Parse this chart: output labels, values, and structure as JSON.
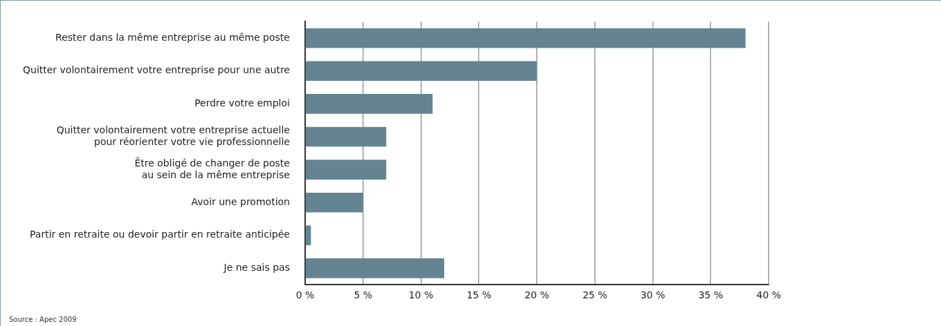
{
  "chart_data": {
    "type": "bar",
    "orientation": "horizontal",
    "categories": [
      "Rester dans la même entreprise au même poste",
      "Quitter volontairement votre entreprise pour une autre",
      "Perdre votre emploi",
      "Quitter volontairement votre entreprise actuelle\npour réorienter votre vie professionnelle",
      "Être obligé de changer de poste\nau sein de la même entreprise",
      "Avoir une promotion",
      "Partir en retraite ou devoir partir en retraite anticipée",
      "Je ne sais pas"
    ],
    "values": [
      38,
      20,
      11,
      7,
      7,
      5,
      0.5,
      12
    ],
    "color": "#648494",
    "xlim": [
      0,
      40
    ],
    "xticks": [
      {
        "value": 0,
        "label": "0 %"
      },
      {
        "value": 5,
        "label": "5 %"
      },
      {
        "value": 10,
        "label": "10 %"
      },
      {
        "value": 15,
        "label": "15 %"
      },
      {
        "value": 20,
        "label": "20 %"
      },
      {
        "value": 25,
        "label": "25 %"
      },
      {
        "value": 30,
        "label": "30 %"
      },
      {
        "value": 35,
        "label": "35 %"
      },
      {
        "value": 40,
        "label": "40 %"
      }
    ],
    "grid": "x",
    "annotations": [
      "Source : Apec 2009"
    ]
  }
}
